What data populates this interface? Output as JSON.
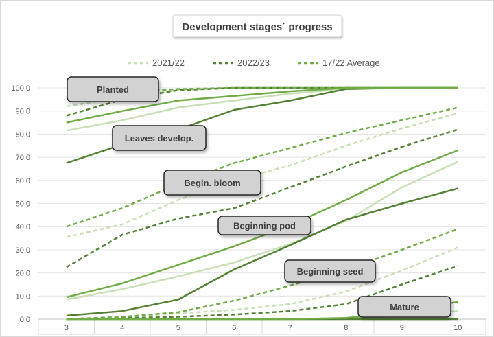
{
  "chart_data": {
    "type": "line",
    "title": "Development stages´ progress",
    "categories": [
      "3",
      "4",
      "5",
      "6",
      "7",
      "8",
      "9",
      "10"
    ],
    "ylim": [
      0,
      100
    ],
    "y_ticks": [
      "0,0",
      "10,0",
      "20,0",
      "30,0",
      "40,0",
      "50,0",
      "60,0",
      "70,0",
      "80,0",
      "90,0",
      "100,0"
    ],
    "grid": true,
    "legend_position": "top",
    "series_styles": [
      {
        "name": "2021/22",
        "color": "#c9dfb5",
        "dash": "5,4"
      },
      {
        "name": "2022/23",
        "color": "#548235",
        "dash": "5,4"
      },
      {
        "name": "17/22 Average",
        "color": "#70ad47",
        "dash": "5,4"
      }
    ],
    "stage_styles": {
      "2021/22": "#c9dfb5",
      "2022/23": "#548235",
      "17/22 Average": "#70ad47"
    },
    "stages": [
      {
        "label": "Planted",
        "style": "dashed",
        "series": [
          {
            "season": "2021/22",
            "values": [
              92,
              96,
              99,
              100,
              100,
              100,
              100,
              100
            ]
          },
          {
            "season": "2022/23",
            "values": [
              88,
              95,
              99,
              100,
              100,
              100,
              100,
              100
            ]
          },
          {
            "season": "17/22 Average",
            "values": [
              96,
              98,
              99.5,
              100,
              100,
              100,
              100,
              100
            ]
          }
        ]
      },
      {
        "label": "Leaves develop.",
        "style": "solid",
        "series": [
          {
            "season": "2021/22",
            "values": [
              81.5,
              86,
              91.5,
              94.5,
              97.5,
              99.5,
              100,
              100
            ]
          },
          {
            "season": "2022/23",
            "values": [
              67.5,
              75.5,
              82,
              90.5,
              94.5,
              99.5,
              100,
              100
            ]
          },
          {
            "season": "17/22 Average",
            "values": [
              85,
              90,
              94.5,
              96.5,
              98.5,
              100,
              100,
              100
            ]
          }
        ]
      },
      {
        "label": "Begin. bloom",
        "style": "dashed",
        "series": [
          {
            "season": "2021/22",
            "values": [
              35.5,
              41,
              51.5,
              60,
              66.5,
              75,
              82.5,
              89
            ]
          },
          {
            "season": "2022/23",
            "values": [
              22.5,
              36.5,
              43.5,
              48,
              57,
              66,
              74.5,
              82
            ]
          },
          {
            "season": "17/22 Average",
            "values": [
              40,
              48,
              58.5,
              67.5,
              74,
              80.5,
              86,
              91.5
            ]
          }
        ]
      },
      {
        "label": "Beginning pod",
        "style": "solid",
        "series": [
          {
            "season": "2021/22",
            "values": [
              8.5,
              13,
              18.5,
              24.5,
              32.5,
              42.5,
              57,
              68
            ]
          },
          {
            "season": "2022/23",
            "values": [
              1.5,
              3.5,
              8.5,
              21.5,
              32,
              43,
              50,
              56.5
            ]
          },
          {
            "season": "17/22 Average",
            "values": [
              9.5,
              15.5,
              23.5,
              31.5,
              40.5,
              51.5,
              63.5,
              73
            ]
          }
        ]
      },
      {
        "label": "Beginning seed",
        "style": "dashed",
        "series": [
          {
            "season": "2021/22",
            "values": [
              0,
              1,
              2.5,
              4,
              6.5,
              12,
              21,
              31
            ]
          },
          {
            "season": "2022/23",
            "values": [
              0,
              0.5,
              1,
              2,
              3.5,
              6.5,
              15,
              23
            ]
          },
          {
            "season": "17/22 Average",
            "values": [
              0,
              1,
              3,
              8,
              14.5,
              21.5,
              30,
              39
            ]
          }
        ]
      },
      {
        "label": "Mature",
        "style": "solid",
        "series": [
          {
            "season": "2021/22",
            "values": [
              0,
              0,
              0,
              0,
              0,
              0,
              1.5,
              3.5
            ]
          },
          {
            "season": "2022/23",
            "values": [
              0,
              0,
              0,
              0,
              0,
              0,
              0,
              0
            ]
          },
          {
            "season": "17/22 Average",
            "values": [
              0,
              0,
              0,
              0,
              0,
              0.5,
              3,
              7.5
            ]
          }
        ]
      }
    ]
  }
}
